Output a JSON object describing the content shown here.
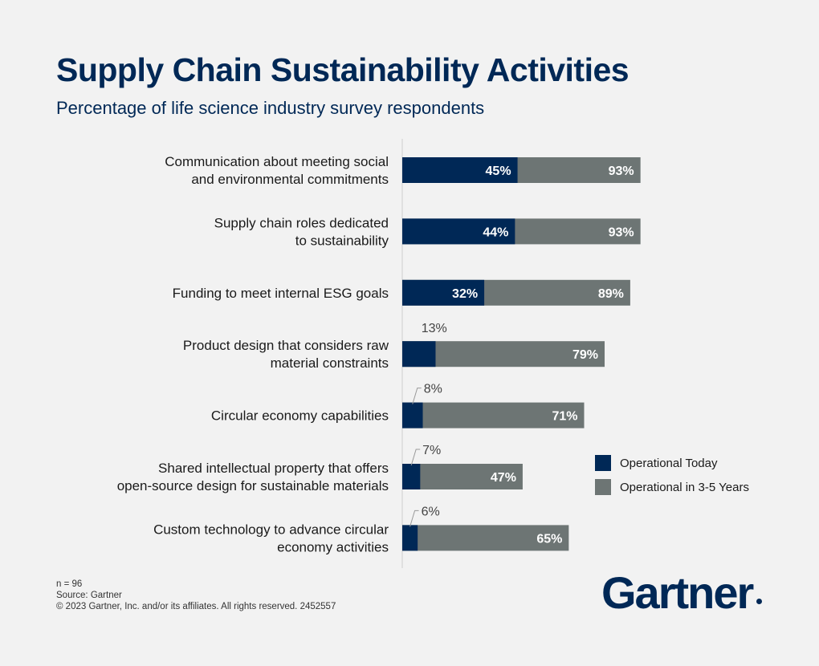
{
  "title": "Supply Chain Sustainability Activities",
  "subtitle": "Percentage of life science industry survey respondents",
  "colors": {
    "today": "#002856",
    "future": "#6d7574",
    "title": "#002856"
  },
  "chart_data": {
    "type": "bar",
    "orientation": "horizontal",
    "stacked": true,
    "categories": [
      [
        "Communication about meeting social",
        "and environmental commitments"
      ],
      [
        "Supply chain roles dedicated",
        "to sustainability"
      ],
      [
        "Funding to meet internal ESG goals"
      ],
      [
        "Product design that considers raw",
        "material constraints"
      ],
      [
        "Circular economy capabilities"
      ],
      [
        "Shared intellectual property that offers",
        "open-source design for sustainable materials"
      ],
      [
        "Custom technology to advance circular",
        "economy activities"
      ]
    ],
    "series": [
      {
        "name": "Operational Today",
        "values": [
          45,
          44,
          32,
          13,
          8,
          7,
          6
        ],
        "labels": [
          "45%",
          "44%",
          "32%",
          "13%",
          "8%",
          "7%",
          "6%"
        ]
      },
      {
        "name": "Operational in 3-5 Years",
        "values": [
          93,
          93,
          89,
          79,
          71,
          47,
          65
        ],
        "labels": [
          "93%",
          "93%",
          "89%",
          "79%",
          "71%",
          "47%",
          "65%"
        ]
      }
    ],
    "legend_position": "right"
  },
  "notes": {
    "n": "n = 96",
    "source": "Source: Gartner",
    "copyright": "© 2023 Gartner, Inc. and/or its affiliates. All rights reserved. 2452557"
  },
  "logo": {
    "text": "Gartner"
  }
}
